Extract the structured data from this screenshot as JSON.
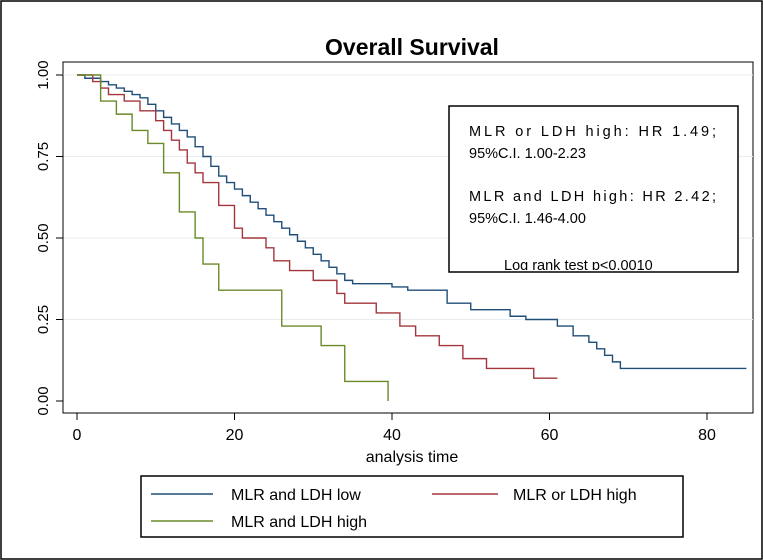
{
  "chart_data": {
    "type": "line",
    "title": "Overall Survival",
    "xlabel": "analysis time",
    "ylabel": "",
    "xlim": [
      -1,
      85
    ],
    "ylim": [
      0,
      1
    ],
    "x_ticks": [
      0,
      20,
      40,
      60,
      80
    ],
    "x_tick_labels": [
      "0",
      "20",
      "40",
      "60",
      "80"
    ],
    "y_ticks": [
      0,
      0.25,
      0.5,
      0.75,
      1.0
    ],
    "y_tick_labels": [
      "0.00",
      "0.25",
      "0.50",
      "0.75",
      "1.00"
    ],
    "grid": "horizontal",
    "legend": "bottom",
    "series": [
      {
        "name": "MLR and LDH low",
        "color": "#1f4e79",
        "x": [
          0,
          1,
          3,
          4,
          5,
          6,
          7,
          8,
          9,
          10,
          11,
          12,
          13,
          14,
          15,
          16,
          17,
          18,
          19,
          20,
          21,
          22,
          23,
          24,
          25,
          26,
          27,
          28,
          29,
          30,
          31,
          32,
          33,
          34,
          35,
          36,
          37,
          40,
          42,
          47,
          50,
          55,
          56,
          57,
          59,
          61,
          63,
          65,
          66,
          67,
          68,
          69,
          72,
          85
        ],
        "y": [
          1.0,
          0.99,
          0.98,
          0.97,
          0.96,
          0.95,
          0.94,
          0.93,
          0.91,
          0.89,
          0.87,
          0.85,
          0.83,
          0.81,
          0.78,
          0.75,
          0.72,
          0.69,
          0.67,
          0.65,
          0.63,
          0.61,
          0.59,
          0.57,
          0.55,
          0.53,
          0.51,
          0.49,
          0.47,
          0.45,
          0.43,
          0.41,
          0.39,
          0.37,
          0.36,
          0.36,
          0.36,
          0.35,
          0.34,
          0.3,
          0.28,
          0.26,
          0.26,
          0.25,
          0.25,
          0.23,
          0.2,
          0.18,
          0.16,
          0.14,
          0.12,
          0.1,
          0.1,
          0.1
        ]
      },
      {
        "name": "MLR or LDH high",
        "color": "#a2363c",
        "x": [
          0,
          2,
          3,
          4,
          6,
          8,
          10,
          11,
          12,
          13,
          14,
          15,
          16,
          18,
          20,
          21,
          24,
          25,
          27,
          30,
          33,
          34,
          38,
          41,
          43,
          46,
          49,
          52,
          55,
          58,
          59,
          61
        ],
        "y": [
          1.0,
          0.98,
          0.96,
          0.94,
          0.92,
          0.89,
          0.86,
          0.83,
          0.8,
          0.77,
          0.73,
          0.7,
          0.67,
          0.6,
          0.53,
          0.5,
          0.47,
          0.43,
          0.4,
          0.37,
          0.33,
          0.3,
          0.27,
          0.23,
          0.2,
          0.17,
          0.13,
          0.1,
          0.1,
          0.07,
          0.07,
          0.07
        ]
      },
      {
        "name": "MLR and LDH high",
        "color": "#6a8a2a",
        "x": [
          0,
          3,
          5,
          7,
          9,
          11,
          13,
          15,
          16,
          18,
          20,
          26,
          28,
          31,
          34,
          38,
          39.5
        ],
        "y": [
          1.0,
          0.92,
          0.88,
          0.83,
          0.79,
          0.7,
          0.58,
          0.5,
          0.42,
          0.34,
          0.34,
          0.23,
          0.23,
          0.17,
          0.06,
          0.06,
          0.0
        ]
      }
    ],
    "annotations": [
      "MLR or LDH high: HR 1.49; 95%C.I. 1.00-2.23",
      "MLR and LDH high: HR 2.42; 95%C.I. 1.46-4.00",
      "Log rank test p<0.0010"
    ]
  },
  "annotation_box": {
    "line1a": "MLR or LDH high: HR 1.49;",
    "line1b": "95%C.I. 1.00-2.23",
    "line2a": "MLR and LDH high: HR 2.42;",
    "line2b": "95%C.I. 1.46-4.00",
    "line3": "Log rank test p<0.0010"
  }
}
